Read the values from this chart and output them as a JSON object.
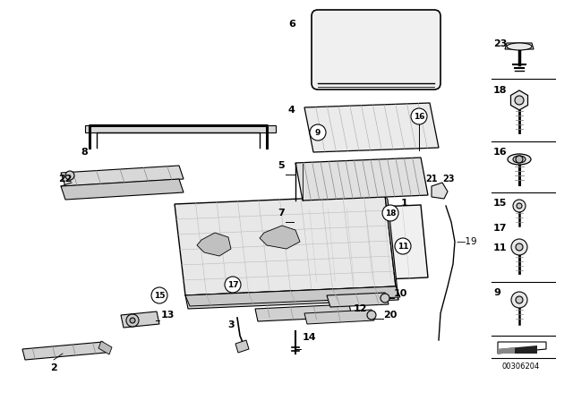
{
  "bg_color": "#ffffff",
  "lc": "#000000",
  "diagram_code": "00306204",
  "parts": [
    1,
    2,
    3,
    4,
    5,
    6,
    7,
    8,
    9,
    10,
    11,
    12,
    13,
    14,
    15,
    16,
    17,
    18,
    19,
    20,
    21,
    22,
    23
  ]
}
